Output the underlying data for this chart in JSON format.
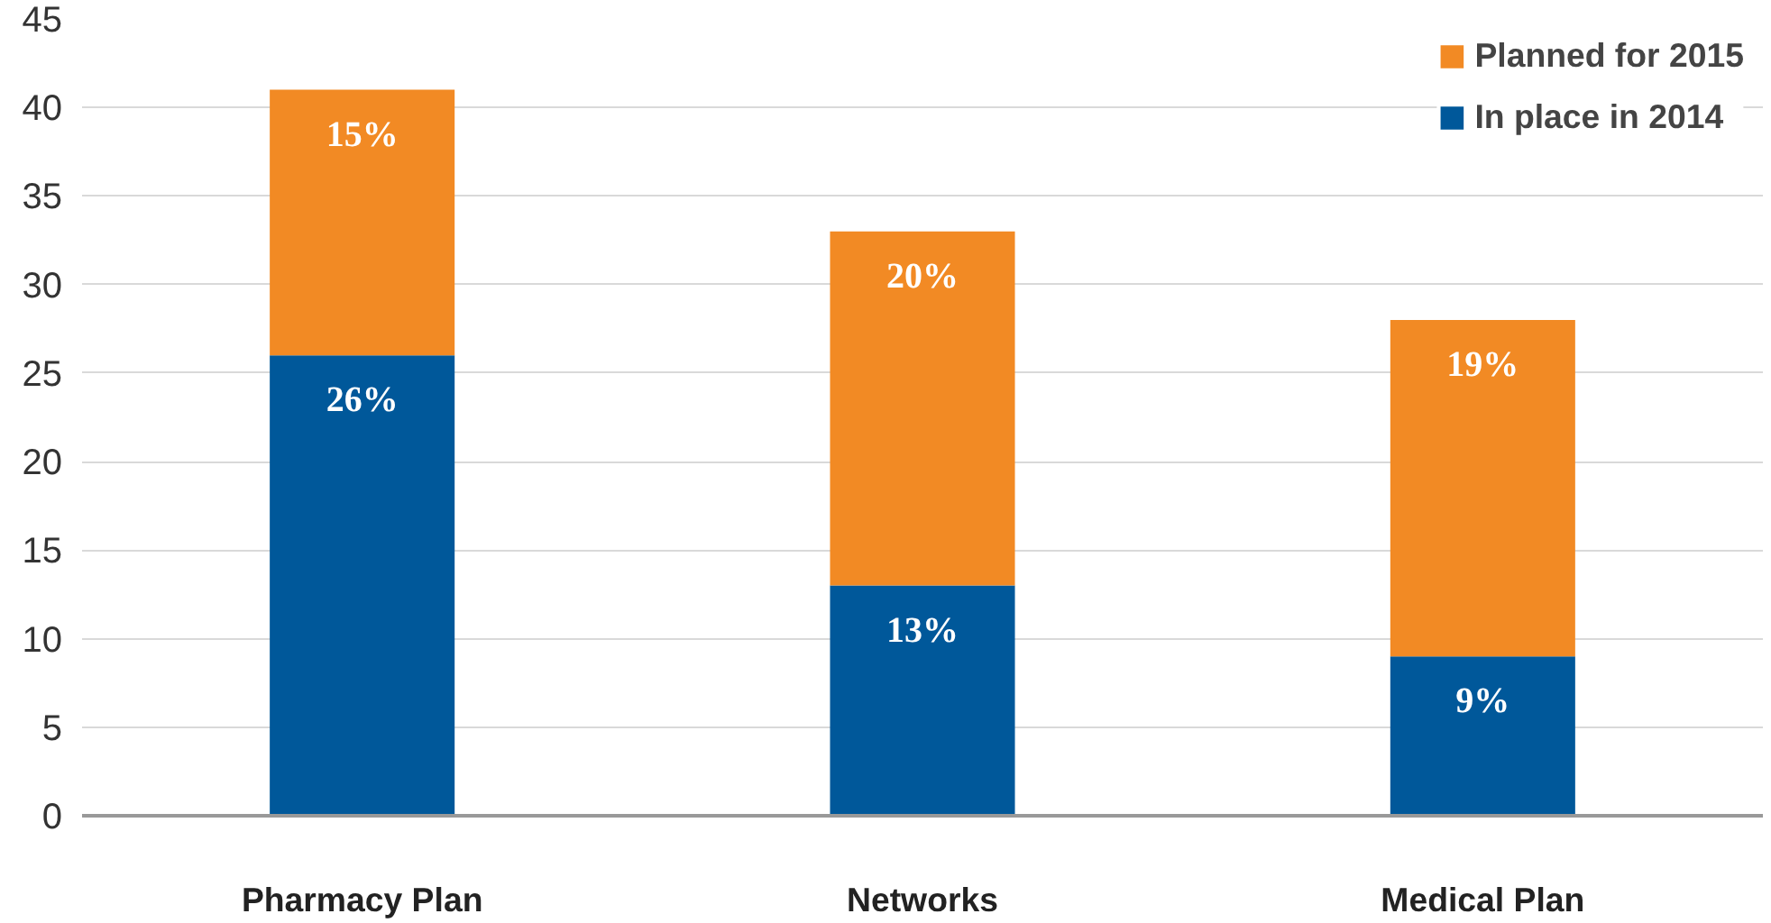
{
  "chart_data": {
    "type": "bar",
    "stacked": true,
    "categories": [
      "Pharmacy Plan",
      "Networks",
      "Medical Plan"
    ],
    "series": [
      {
        "name": "In place in 2014",
        "color": "#00589a",
        "values": [
          26,
          13,
          9
        ],
        "value_labels": [
          "26%",
          "13%",
          "9%"
        ]
      },
      {
        "name": "Planned for 2015",
        "color": "#f28a24",
        "values": [
          15,
          20,
          19
        ],
        "value_labels": [
          "15%",
          "20%",
          "19%"
        ]
      }
    ],
    "ylim": [
      0,
      45
    ],
    "yticks": [
      0,
      5,
      10,
      15,
      20,
      25,
      30,
      35,
      40,
      45
    ],
    "grid": "y",
    "legend": "top right"
  }
}
